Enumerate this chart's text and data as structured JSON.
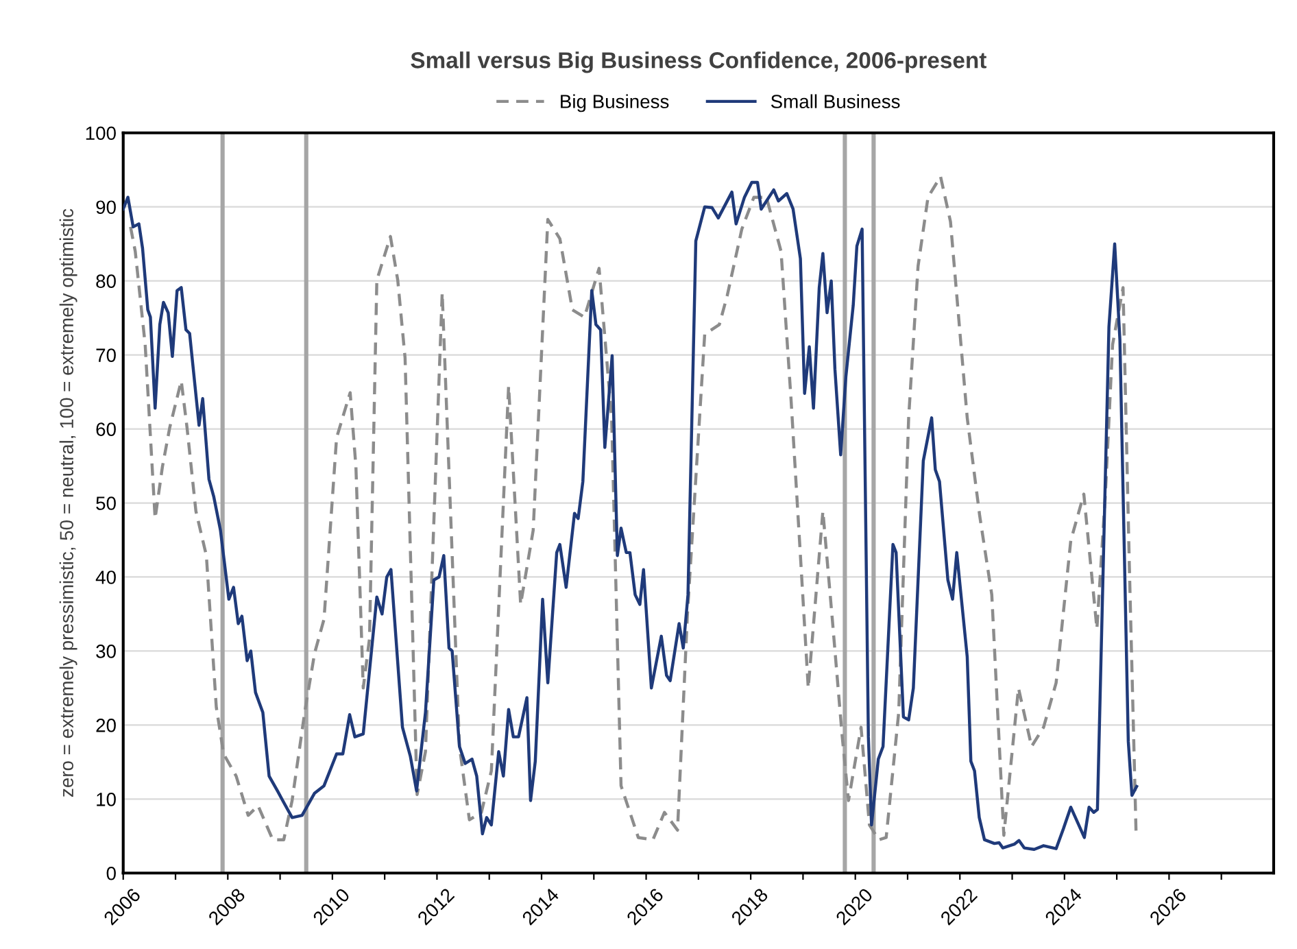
{
  "chart_data": {
    "type": "line",
    "title": "Small versus Big Business Confidence, 2006-present",
    "ylabel": "zero = extremely pressimistic, 50 = neutral, 100 = extremely optimistic",
    "xlim": [
      2006,
      2028
    ],
    "xticks": [
      2006,
      {
        "value": 2007,
        "label": null
      },
      2008,
      {
        "value": 2009,
        "label": null
      },
      2010,
      {
        "value": 2011,
        "label": null
      },
      2012,
      {
        "value": 2013,
        "label": null
      },
      2014,
      {
        "value": 2015,
        "label": null
      },
      2016,
      {
        "value": 2017,
        "label": null
      },
      2018,
      {
        "value": 2019,
        "label": null
      },
      2020,
      {
        "value": 2021,
        "label": null
      },
      2022,
      {
        "value": 2023,
        "label": null
      },
      2024,
      {
        "value": 2025,
        "label": null
      },
      2026,
      {
        "value": 2027,
        "label": null
      }
    ],
    "ylim": [
      0,
      100
    ],
    "yticks": [
      0,
      10,
      20,
      30,
      40,
      50,
      60,
      70,
      80,
      90,
      100
    ],
    "grid": "y",
    "legend": "top",
    "marker": "none",
    "ref_lines": [
      {
        "axis": "x",
        "value": 2007.9,
        "color": "#a6a6a6"
      },
      {
        "axis": "x",
        "value": 2009.5,
        "color": "#a6a6a6"
      },
      {
        "axis": "x",
        "value": 2019.8,
        "color": "#a6a6a6"
      },
      {
        "axis": "x",
        "value": 2020.35,
        "color": "#a6a6a6"
      }
    ],
    "series": [
      {
        "name": "Big Business",
        "color": "#8c8c8c",
        "line_style": "dashed",
        "x": [
          2006.14,
          2006.23,
          2006.42,
          2006.61,
          2006.75,
          2006.89,
          2007.11,
          2007.22,
          2007.39,
          2007.59,
          2007.78,
          2007.92,
          2008.16,
          2008.39,
          2008.58,
          2008.86,
          2009.07,
          2009.23,
          2009.47,
          2009.66,
          2009.84,
          2010.08,
          2010.34,
          2010.45,
          2010.59,
          2010.71,
          2010.85,
          2011.11,
          2011.25,
          2011.39,
          2011.62,
          2011.78,
          2012.1,
          2012.43,
          2012.62,
          2012.85,
          2013.04,
          2013.37,
          2013.6,
          2013.84,
          2014.12,
          2014.35,
          2014.59,
          2014.82,
          2015.1,
          2015.34,
          2015.52,
          2015.85,
          2016.13,
          2016.35,
          2016.6,
          2016.79,
          2017.12,
          2017.4,
          2017.55,
          2017.83,
          2018.06,
          2018.3,
          2018.58,
          2018.77,
          2018.95,
          2019.1,
          2019.38,
          2019.56,
          2019.75,
          2019.87,
          2020.11,
          2020.27,
          2020.45,
          2020.59,
          2020.83,
          2021.02,
          2021.2,
          2021.39,
          2021.63,
          2021.82,
          2022.14,
          2022.38,
          2022.61,
          2022.84,
          2023.12,
          2023.37,
          2023.6,
          2023.84,
          2024.12,
          2024.37,
          2024.62,
          2024.78,
          2024.92,
          2025.12,
          2025.24,
          2025.37
        ],
        "values": [
          87.3,
          84.0,
          71.4,
          47.9,
          54.9,
          60.2,
          66.5,
          60.2,
          48.9,
          42.9,
          22.4,
          16.1,
          13.1,
          7.8,
          9.1,
          4.5,
          4.5,
          9.8,
          21.7,
          29.7,
          34.3,
          58.8,
          64.9,
          54.9,
          25.0,
          31.7,
          80.1,
          86.0,
          80.1,
          69.6,
          10.6,
          16.4,
          78.4,
          17.1,
          7.2,
          8.2,
          13.8,
          65.8,
          36.3,
          46.3,
          88.3,
          85.7,
          76.1,
          75.1,
          81.7,
          61.5,
          11.8,
          4.8,
          4.5,
          8.2,
          5.8,
          35.0,
          72.8,
          74.1,
          78.0,
          87.0,
          91.3,
          91.3,
          84.0,
          64.1,
          42.9,
          25.0,
          48.9,
          34.3,
          18.4,
          9.8,
          19.7,
          6.5,
          4.5,
          4.8,
          21.7,
          61.5,
          82.0,
          91.3,
          94.1,
          88.0,
          61.5,
          48.2,
          37.6,
          5.1,
          25.0,
          17.1,
          19.7,
          25.7,
          44.9,
          51.2,
          33.0,
          50.9,
          71.4,
          79.1,
          41.6,
          5.1
        ]
      },
      {
        "name": "Small Business",
        "color": "#1f3a7a",
        "line_style": "solid",
        "x": [
          2006.0,
          2006.09,
          2006.19,
          2006.3,
          2006.37,
          2006.47,
          2006.52,
          2006.61,
          2006.7,
          2006.77,
          2006.86,
          2006.94,
          2007.03,
          2007.11,
          2007.2,
          2007.27,
          2007.45,
          2007.52,
          2007.64,
          2007.73,
          2007.86,
          2008.02,
          2008.11,
          2008.2,
          2008.27,
          2008.37,
          2008.44,
          2008.53,
          2008.67,
          2008.79,
          2008.95,
          2009.05,
          2009.23,
          2009.42,
          2009.66,
          2009.84,
          2010.08,
          2010.2,
          2010.33,
          2010.43,
          2010.59,
          2010.85,
          2010.95,
          2011.04,
          2011.12,
          2011.34,
          2011.49,
          2011.61,
          2011.78,
          2011.94,
          2012.04,
          2012.13,
          2012.23,
          2012.29,
          2012.43,
          2012.54,
          2012.67,
          2012.76,
          2012.87,
          2012.95,
          2013.04,
          2013.18,
          2013.27,
          2013.37,
          2013.46,
          2013.56,
          2013.72,
          2013.79,
          2013.88,
          2014.02,
          2014.12,
          2014.29,
          2014.35,
          2014.47,
          2014.63,
          2014.7,
          2014.79,
          2014.96,
          2015.04,
          2015.13,
          2015.21,
          2015.35,
          2015.45,
          2015.52,
          2015.62,
          2015.69,
          2015.79,
          2015.88,
          2015.95,
          2016.1,
          2016.29,
          2016.39,
          2016.46,
          2016.63,
          2016.71,
          2016.8,
          2016.95,
          2017.12,
          2017.26,
          2017.38,
          2017.64,
          2017.72,
          2017.88,
          2018.02,
          2018.13,
          2018.2,
          2018.44,
          2018.53,
          2018.69,
          2018.81,
          2018.95,
          2019.03,
          2019.12,
          2019.2,
          2019.31,
          2019.38,
          2019.46,
          2019.54,
          2019.61,
          2019.72,
          2019.82,
          2019.96,
          2020.03,
          2020.13,
          2020.25,
          2020.31,
          2020.44,
          2020.53,
          2020.72,
          2020.78,
          2020.92,
          2021.02,
          2021.11,
          2021.3,
          2021.46,
          2021.53,
          2021.61,
          2021.77,
          2021.86,
          2021.94,
          2022.14,
          2022.21,
          2022.28,
          2022.37,
          2022.47,
          2022.66,
          2022.75,
          2022.82,
          2023.04,
          2023.13,
          2023.23,
          2023.42,
          2023.6,
          2023.84,
          2023.98,
          2024.12,
          2024.21,
          2024.38,
          2024.47,
          2024.56,
          2024.63,
          2024.85,
          2024.96,
          2025.06,
          2025.22,
          2025.29,
          2025.38
        ],
        "values": [
          89.7,
          91.3,
          87.3,
          87.7,
          84.4,
          76.1,
          75.1,
          62.8,
          74.1,
          77.1,
          75.7,
          69.8,
          78.7,
          79.1,
          73.4,
          72.9,
          60.5,
          64.1,
          53.2,
          50.9,
          46.3,
          37.0,
          38.6,
          33.7,
          34.7,
          28.7,
          30.0,
          24.4,
          21.7,
          13.1,
          11.1,
          9.8,
          7.5,
          7.8,
          10.8,
          11.8,
          16.1,
          16.1,
          21.4,
          18.4,
          18.8,
          37.3,
          35.0,
          40.0,
          41.0,
          19.7,
          15.8,
          11.1,
          21.7,
          39.6,
          40.0,
          42.9,
          30.4,
          30.0,
          17.1,
          14.8,
          15.4,
          13.1,
          5.3,
          7.5,
          6.5,
          16.4,
          13.1,
          22.1,
          18.4,
          18.4,
          23.7,
          9.8,
          15.1,
          37.0,
          25.7,
          43.3,
          44.4,
          38.6,
          48.6,
          47.9,
          52.9,
          78.7,
          74.1,
          73.4,
          57.5,
          69.9,
          42.9,
          46.6,
          43.3,
          43.3,
          37.6,
          36.3,
          41.0,
          25.0,
          32.0,
          26.7,
          26.0,
          33.7,
          30.4,
          37.6,
          85.4,
          90.0,
          89.9,
          88.5,
          92.0,
          87.7,
          91.3,
          93.3,
          93.3,
          89.7,
          92.3,
          90.8,
          91.8,
          89.7,
          83.0,
          64.8,
          71.1,
          62.8,
          79.1,
          83.7,
          75.7,
          80.0,
          68.1,
          56.5,
          67.1,
          76.7,
          84.7,
          87.0,
          18.4,
          6.5,
          15.4,
          17.1,
          44.4,
          43.3,
          21.1,
          20.7,
          25.0,
          55.7,
          61.5,
          54.5,
          52.9,
          39.6,
          37.0,
          43.3,
          29.2,
          15.1,
          13.8,
          7.5,
          4.5,
          4.0,
          4.1,
          3.4,
          3.9,
          4.4,
          3.4,
          3.2,
          3.7,
          3.3,
          6.0,
          8.9,
          7.5,
          4.8,
          8.9,
          8.2,
          8.6,
          73.8,
          85.0,
          72.0,
          17.8,
          10.5,
          11.7
        ]
      }
    ]
  }
}
